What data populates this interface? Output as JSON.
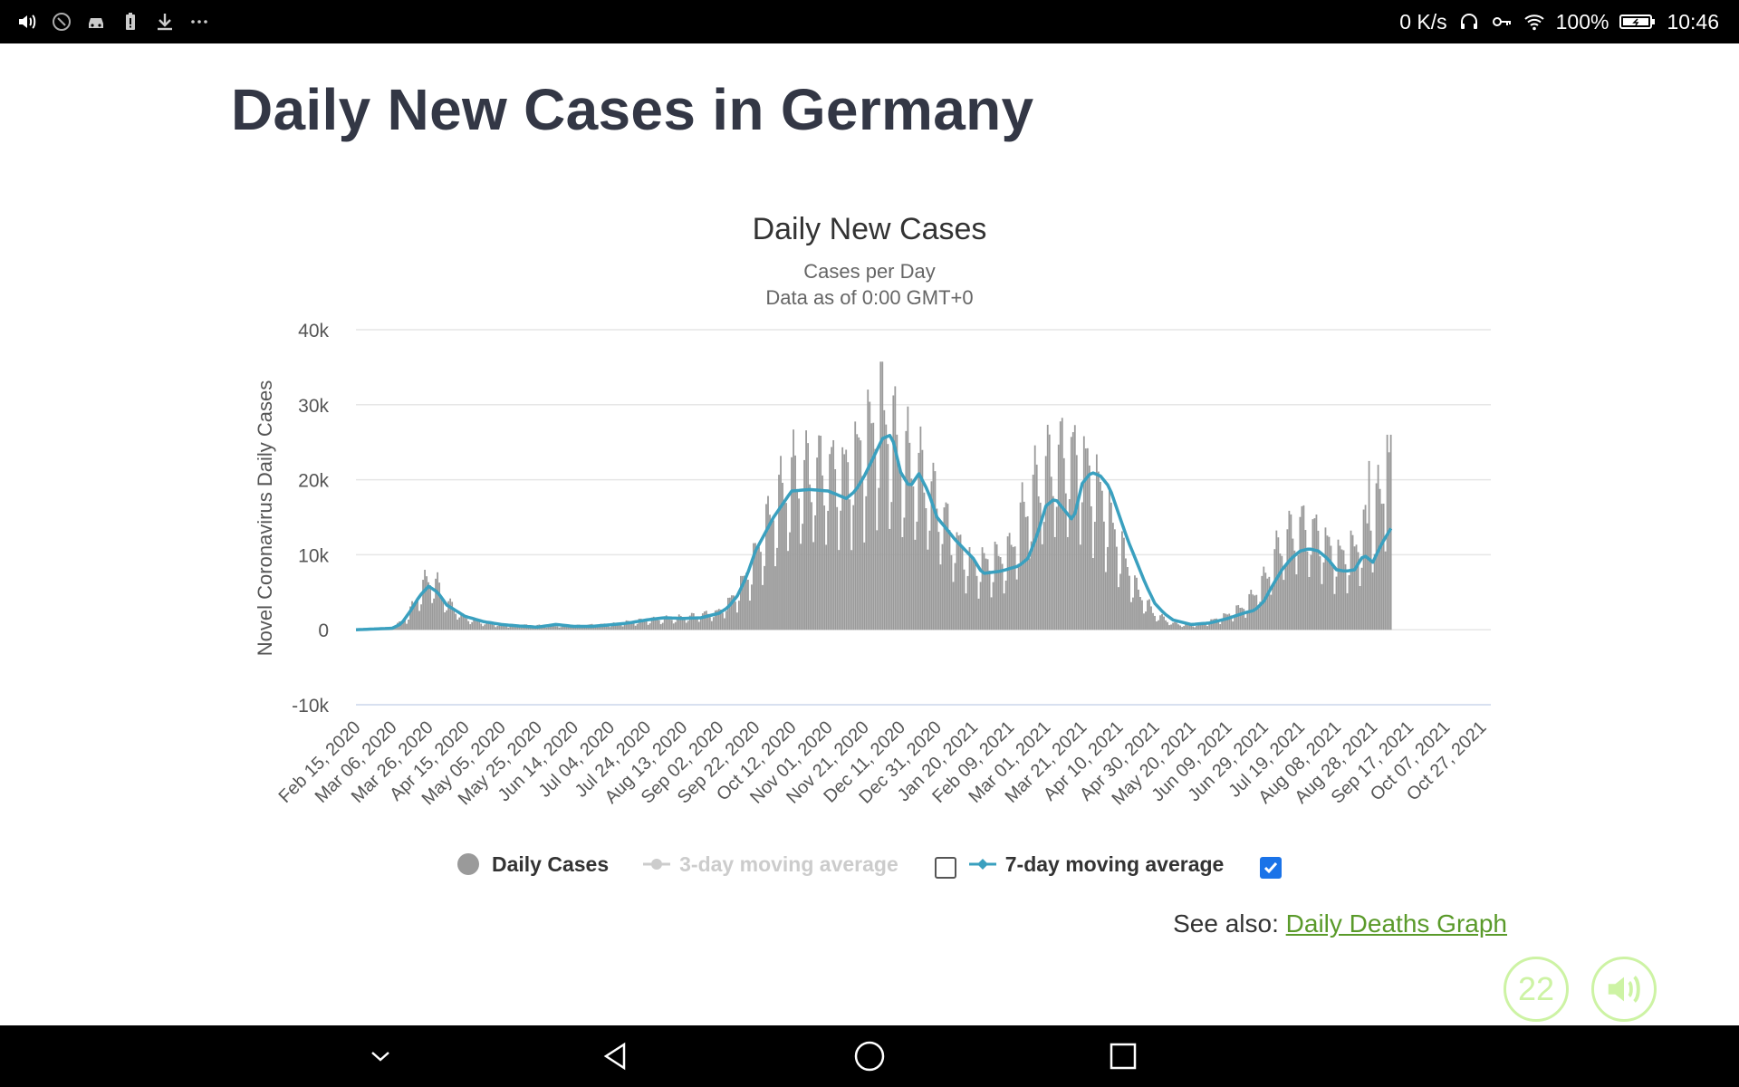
{
  "status_bar": {
    "left_icons": [
      "volume-icon",
      "do-not-disturb-icon",
      "car-icon",
      "battery-alert-icon",
      "download-icon",
      "more-icon"
    ],
    "network_speed": "0 K/s",
    "battery_percent": "100%",
    "time": "10:46"
  },
  "page": {
    "title": "Daily New Cases in Germany"
  },
  "chart_data": {
    "type": "bar",
    "title": "Daily New Cases",
    "subtitle_lines": [
      "Cases per Day",
      "Data as of 0:00 GMT+0"
    ],
    "ylabel": "Novel Coronavirus Daily Cases",
    "ylim": [
      -10000,
      40000
    ],
    "y_ticks": [
      {
        "value": 40000,
        "label": "40k"
      },
      {
        "value": 30000,
        "label": "30k"
      },
      {
        "value": 20000,
        "label": "20k"
      },
      {
        "value": 10000,
        "label": "10k"
      },
      {
        "value": 0,
        "label": "0"
      },
      {
        "value": -10000,
        "label": "-10k"
      }
    ],
    "x_tick_labels": [
      "Feb 15, 2020",
      "Mar 06, 2020",
      "Mar 26, 2020",
      "Apr 15, 2020",
      "May 05, 2020",
      "May 25, 2020",
      "Jun 14, 2020",
      "Jul 04, 2020",
      "Jul 24, 2020",
      "Aug 13, 2020",
      "Sep 02, 2020",
      "Sep 22, 2020",
      "Oct 12, 2020",
      "Nov 01, 2020",
      "Nov 21, 2020",
      "Dec 11, 2020",
      "Dec 31, 2020",
      "Jan 20, 2021",
      "Feb 09, 2021",
      "Mar 01, 2021",
      "Mar 21, 2021",
      "Apr 10, 2021",
      "Apr 30, 2021",
      "May 20, 2021",
      "Jun 09, 2021",
      "Jun 29, 2021",
      "Jul 19, 2021",
      "Aug 08, 2021",
      "Aug 28, 2021",
      "Sep 17, 2021",
      "Oct 07, 2021",
      "Oct 27, 2021"
    ],
    "days_between_ticks": 20,
    "series": [
      {
        "name": "Daily Cases",
        "color": "#9a9a9a",
        "keypoints_day_value": [
          [
            0,
            0
          ],
          [
            20,
            200
          ],
          [
            28,
            1500
          ],
          [
            35,
            4500
          ],
          [
            40,
            6500
          ],
          [
            45,
            5500
          ],
          [
            50,
            3500
          ],
          [
            60,
            1500
          ],
          [
            70,
            900
          ],
          [
            80,
            600
          ],
          [
            100,
            500
          ],
          [
            120,
            500
          ],
          [
            140,
            700
          ],
          [
            160,
            1200
          ],
          [
            180,
            1500
          ],
          [
            200,
            2200
          ],
          [
            210,
            4500
          ],
          [
            220,
            9000
          ],
          [
            230,
            15000
          ],
          [
            240,
            19000
          ],
          [
            255,
            20000
          ],
          [
            270,
            19500
          ],
          [
            280,
            23000
          ],
          [
            290,
            27000
          ],
          [
            300,
            22000
          ],
          [
            310,
            20000
          ],
          [
            320,
            16000
          ],
          [
            330,
            11000
          ],
          [
            340,
            8000
          ],
          [
            350,
            8500
          ],
          [
            360,
            9500
          ],
          [
            370,
            16000
          ],
          [
            380,
            20000
          ],
          [
            390,
            22000
          ],
          [
            400,
            21000
          ],
          [
            410,
            17000
          ],
          [
            420,
            11000
          ],
          [
            430,
            5000
          ],
          [
            440,
            2000
          ],
          [
            450,
            800
          ],
          [
            460,
            500
          ],
          [
            470,
            1000
          ],
          [
            480,
            1800
          ],
          [
            490,
            3000
          ],
          [
            500,
            6000
          ],
          [
            510,
            11000
          ],
          [
            520,
            13000
          ],
          [
            530,
            12000
          ],
          [
            540,
            9000
          ],
          [
            550,
            10000
          ],
          [
            560,
            14000
          ],
          [
            570,
            20000
          ]
        ]
      },
      {
        "name": "7-day moving average",
        "color": "#3aa0bf",
        "keypoints_day_value": [
          [
            0,
            0
          ],
          [
            20,
            200
          ],
          [
            25,
            800
          ],
          [
            30,
            2500
          ],
          [
            35,
            4500
          ],
          [
            40,
            5800
          ],
          [
            45,
            5000
          ],
          [
            50,
            3300
          ],
          [
            60,
            1800
          ],
          [
            70,
            1100
          ],
          [
            80,
            700
          ],
          [
            90,
            500
          ],
          [
            100,
            350
          ],
          [
            110,
            700
          ],
          [
            120,
            450
          ],
          [
            130,
            450
          ],
          [
            140,
            650
          ],
          [
            150,
            900
          ],
          [
            160,
            1300
          ],
          [
            170,
            1600
          ],
          [
            180,
            1500
          ],
          [
            190,
            1600
          ],
          [
            200,
            2200
          ],
          [
            205,
            3000
          ],
          [
            210,
            4500
          ],
          [
            215,
            7000
          ],
          [
            220,
            10500
          ],
          [
            230,
            15000
          ],
          [
            240,
            18500
          ],
          [
            250,
            18700
          ],
          [
            260,
            18500
          ],
          [
            270,
            17500
          ],
          [
            275,
            18500
          ],
          [
            280,
            20500
          ],
          [
            285,
            23000
          ],
          [
            290,
            25500
          ],
          [
            295,
            26000
          ],
          [
            300,
            21000
          ],
          [
            305,
            19000
          ],
          [
            310,
            20800
          ],
          [
            315,
            18500
          ],
          [
            320,
            15000
          ],
          [
            330,
            12000
          ],
          [
            340,
            9500
          ],
          [
            345,
            7500
          ],
          [
            355,
            7800
          ],
          [
            365,
            8500
          ],
          [
            370,
            9500
          ],
          [
            375,
            12500
          ],
          [
            380,
            16500
          ],
          [
            385,
            17500
          ],
          [
            390,
            16000
          ],
          [
            395,
            14500
          ],
          [
            400,
            19500
          ],
          [
            405,
            21000
          ],
          [
            410,
            20500
          ],
          [
            415,
            19000
          ],
          [
            420,
            15500
          ],
          [
            425,
            12000
          ],
          [
            430,
            9000
          ],
          [
            435,
            6000
          ],
          [
            440,
            3500
          ],
          [
            445,
            2200
          ],
          [
            450,
            1300
          ],
          [
            460,
            700
          ],
          [
            470,
            900
          ],
          [
            480,
            1500
          ],
          [
            490,
            2300
          ],
          [
            495,
            2600
          ],
          [
            500,
            3800
          ],
          [
            505,
            6000
          ],
          [
            510,
            8000
          ],
          [
            515,
            9500
          ],
          [
            520,
            10500
          ],
          [
            525,
            10800
          ],
          [
            530,
            10500
          ],
          [
            535,
            9500
          ],
          [
            540,
            8000
          ],
          [
            545,
            7800
          ],
          [
            550,
            8000
          ],
          [
            555,
            10000
          ],
          [
            560,
            9000
          ],
          [
            565,
            11500
          ],
          [
            570,
            13500
          ]
        ]
      }
    ],
    "legend": [
      {
        "label": "Daily Cases",
        "enabled": true
      },
      {
        "label": "3-day moving average",
        "enabled": false
      },
      {
        "label": "7-day moving average",
        "enabled": true
      }
    ]
  },
  "see_also": {
    "prefix": "See also: ",
    "link_text": "Daily Deaths Graph"
  },
  "fab": {
    "count": "22"
  },
  "nav_bar": {
    "buttons": [
      "collapse-icon",
      "back-icon",
      "home-icon",
      "recents-icon"
    ]
  },
  "colors": {
    "title": "#333745",
    "bars": "#9a9a9a",
    "ma7": "#3aa0bf",
    "ma3_disabled": "#cccccc",
    "link": "#5a9a2a",
    "fab": "#cdf3a4",
    "checkbox_checked": "#1a73e8"
  }
}
